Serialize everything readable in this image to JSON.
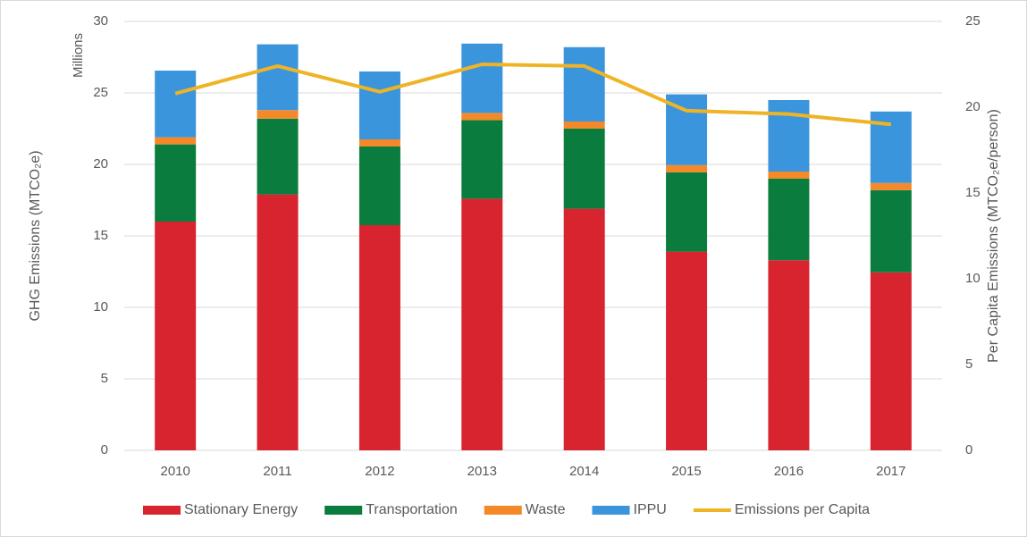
{
  "chart_data": {
    "type": "bar",
    "stacked": true,
    "y_label_unit": "Millions",
    "y_label": "GHG Emissions (MTCO₂e)",
    "y2_label": "Per Capita Emissions (MTCO₂e/person)",
    "categories": [
      "2010",
      "2011",
      "2012",
      "2013",
      "2014",
      "2015",
      "2016",
      "2017"
    ],
    "series": [
      {
        "name": "Stationary Energy",
        "color": "#d7242f",
        "values": [
          16.0,
          17.9,
          15.75,
          17.6,
          16.9,
          13.9,
          13.3,
          12.45
        ]
      },
      {
        "name": "Transportation",
        "color": "#0a7d3e",
        "values": [
          5.4,
          5.3,
          5.5,
          5.5,
          5.6,
          5.55,
          5.7,
          5.75
        ]
      },
      {
        "name": "Waste",
        "color": "#f4892a",
        "values": [
          0.5,
          0.6,
          0.5,
          0.5,
          0.5,
          0.5,
          0.5,
          0.5
        ]
      },
      {
        "name": "IPPU",
        "color": "#3a95dc",
        "values": [
          4.66,
          4.6,
          4.75,
          4.85,
          5.2,
          4.95,
          5.0,
          5.0
        ]
      },
      {
        "name": "Emissions per Capita",
        "color": "#efb426",
        "type": "line",
        "axis": "y2",
        "values": [
          20.8,
          22.4,
          20.9,
          22.5,
          22.4,
          19.8,
          19.6,
          19.0
        ]
      }
    ],
    "ylim": [
      0,
      30
    ],
    "yticks": [
      0,
      5,
      10,
      15,
      20,
      25,
      30
    ],
    "y2lim": [
      0,
      25
    ],
    "y2ticks": [
      0,
      5,
      10,
      15,
      20,
      25
    ],
    "grid": true,
    "legend": "bottom"
  }
}
